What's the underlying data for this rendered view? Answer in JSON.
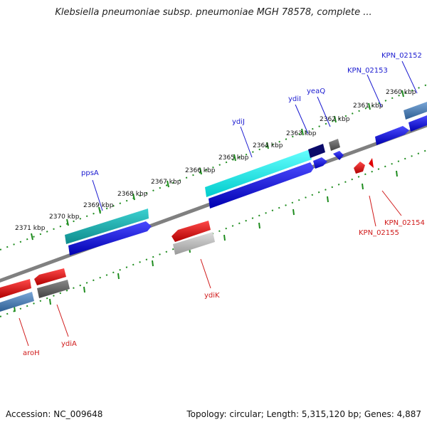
{
  "title": "Klebsiella pneumoniae subsp. pneumoniae MGH 78578, complete ...",
  "footer": {
    "accession": "Accession: NC_009648",
    "summary": "Topology: circular; Length: 5,315,120 bp; Genes: 4,887"
  },
  "scale_ticks": [
    "2371 kbp",
    "2370 kbp",
    "2369 kbp",
    "2368 kbp",
    "2367 kbp",
    "2366 kbp",
    "2365 kbp",
    "2364 kbp",
    "2363 kbp",
    "2362 kbp",
    "2361 kbp",
    "2360 kbp"
  ],
  "gene_labels_top": [
    "ppsA",
    "ydiJ",
    "ydiI",
    "yeaQ",
    "KPN_02153",
    "KPN_02152"
  ],
  "gene_labels_bottom": [
    "aroH",
    "ydiA",
    "ydiK",
    "KPN_02155",
    "KPN_02154"
  ],
  "colors": {
    "forward_label": "#1a1ad0",
    "reverse_label": "#d01a1a",
    "axis": "#808080",
    "tick": "#1e8c1e"
  }
}
